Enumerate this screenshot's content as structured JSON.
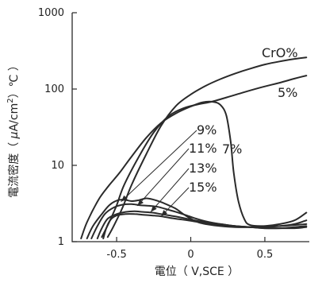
{
  "chart_data": {
    "type": "line",
    "title": "",
    "xlabel": "電位（ V,SCE ）",
    "ylabel": "電流密度（ μA/cm² ）℃ ）",
    "ylabel_parts": [
      "電流密度（ ",
      "μ",
      "A/cm",
      "2",
      "）℃ ）"
    ],
    "xlim": [
      -0.8,
      0.8
    ],
    "ylim": [
      1,
      1000
    ],
    "yscale": "log",
    "xticks": [
      -0.5,
      0,
      0.5
    ],
    "xtick_labels": [
      "-0.5",
      "0",
      "0.5"
    ],
    "yticks": [
      1,
      10,
      100,
      1000
    ],
    "ytick_labels": [
      "1",
      "10",
      "100",
      "1000"
    ],
    "grid": false,
    "series": [
      {
        "name": "CrO%",
        "x": [
          -0.56,
          -0.52,
          -0.46,
          -0.4,
          -0.3,
          -0.2,
          -0.1,
          0.0,
          0.1,
          0.2,
          0.3,
          0.4,
          0.5,
          0.6,
          0.7,
          0.78
        ],
        "y": [
          1.15,
          1.6,
          2.8,
          5.5,
          14,
          33,
          60,
          85,
          110,
          135,
          160,
          185,
          210,
          230,
          248,
          260
        ]
      },
      {
        "name": "5%",
        "x": [
          -0.6,
          -0.55,
          -0.5,
          -0.45,
          -0.35,
          -0.25,
          -0.15,
          -0.05,
          0.05,
          0.15,
          0.3,
          0.45,
          0.6,
          0.7,
          0.78
        ],
        "y": [
          1.15,
          1.8,
          3.0,
          5.5,
          13,
          27,
          44,
          56,
          63,
          69,
          84,
          102,
          121,
          137,
          150
        ]
      },
      {
        "name": "7%",
        "x": [
          -0.74,
          -0.7,
          -0.62,
          -0.55,
          -0.48,
          -0.4,
          -0.3,
          -0.2,
          -0.1,
          0.0,
          0.08,
          0.15,
          0.2,
          0.24,
          0.27,
          0.29,
          0.32,
          0.36,
          0.4,
          0.5,
          0.6,
          0.7,
          0.78
        ],
        "y": [
          1.1,
          1.8,
          3.6,
          5.5,
          8,
          13,
          23,
          36,
          48,
          59,
          67,
          68,
          62,
          45,
          20,
          8,
          3.5,
          2.0,
          1.65,
          1.6,
          1.6,
          1.65,
          1.7
        ]
      },
      {
        "name": "9%",
        "x": [
          -0.7,
          -0.66,
          -0.6,
          -0.55,
          -0.5,
          -0.45,
          -0.4,
          -0.35,
          -0.3,
          -0.25,
          -0.2,
          -0.15,
          -0.1,
          -0.05,
          0.0,
          0.05,
          0.1,
          0.2,
          0.3,
          0.4,
          0.5,
          0.6,
          0.7,
          0.78
        ],
        "y": [
          1.1,
          1.6,
          2.3,
          3.0,
          3.45,
          3.55,
          3.4,
          3.5,
          3.7,
          3.55,
          3.3,
          3.0,
          2.7,
          2.3,
          2.0,
          1.8,
          1.7,
          1.6,
          1.55,
          1.55,
          1.6,
          1.7,
          1.9,
          2.4
        ]
      },
      {
        "name": "11%",
        "x": [
          -0.67,
          -0.63,
          -0.58,
          -0.52,
          -0.46,
          -0.4,
          -0.34,
          -0.28,
          -0.22,
          -0.16,
          -0.1,
          -0.04,
          0.02,
          0.1,
          0.2,
          0.3,
          0.4,
          0.5,
          0.6,
          0.7,
          0.78
        ],
        "y": [
          1.1,
          1.6,
          2.3,
          2.8,
          3.05,
          3.1,
          3.0,
          2.95,
          2.85,
          2.65,
          2.45,
          2.25,
          2.05,
          1.85,
          1.7,
          1.6,
          1.55,
          1.55,
          1.6,
          1.7,
          1.9
        ]
      },
      {
        "name": "13%",
        "x": [
          -0.63,
          -0.6,
          -0.56,
          -0.5,
          -0.44,
          -0.38,
          -0.32,
          -0.26,
          -0.2,
          -0.14,
          -0.08,
          0.0,
          0.1,
          0.2,
          0.3,
          0.4,
          0.5,
          0.6,
          0.7,
          0.78
        ],
        "y": [
          1.1,
          1.5,
          2.0,
          2.3,
          2.45,
          2.5,
          2.45,
          2.4,
          2.3,
          2.2,
          2.1,
          1.95,
          1.8,
          1.7,
          1.6,
          1.55,
          1.5,
          1.5,
          1.55,
          1.6
        ]
      },
      {
        "name": "15%",
        "x": [
          -0.59,
          -0.57,
          -0.54,
          -0.5,
          -0.44,
          -0.38,
          -0.32,
          -0.26,
          -0.2,
          -0.14,
          -0.06,
          0.02,
          0.1,
          0.2,
          0.3,
          0.4,
          0.5,
          0.6,
          0.7,
          0.78
        ],
        "y": [
          1.1,
          1.5,
          1.95,
          2.2,
          2.3,
          2.3,
          2.25,
          2.2,
          2.15,
          2.05,
          1.95,
          1.85,
          1.75,
          1.65,
          1.6,
          1.55,
          1.5,
          1.5,
          1.5,
          1.55
        ]
      }
    ],
    "annotations": [
      {
        "text": "CrO%",
        "series": "CrO%"
      },
      {
        "text": "5%",
        "series": "5%"
      },
      {
        "text": "7%",
        "series": "7%"
      },
      {
        "text": "9%",
        "series": "9%",
        "arrow_to": [
          -0.47,
          3.35
        ]
      },
      {
        "text": "11%",
        "series": "11%",
        "arrow_to": [
          -0.36,
          2.95
        ]
      },
      {
        "text": "13%",
        "series": "13%",
        "arrow_to": [
          -0.27,
          2.45
        ]
      },
      {
        "text": "15%",
        "series": "15%",
        "arrow_to": [
          -0.2,
          2.15
        ]
      }
    ]
  }
}
